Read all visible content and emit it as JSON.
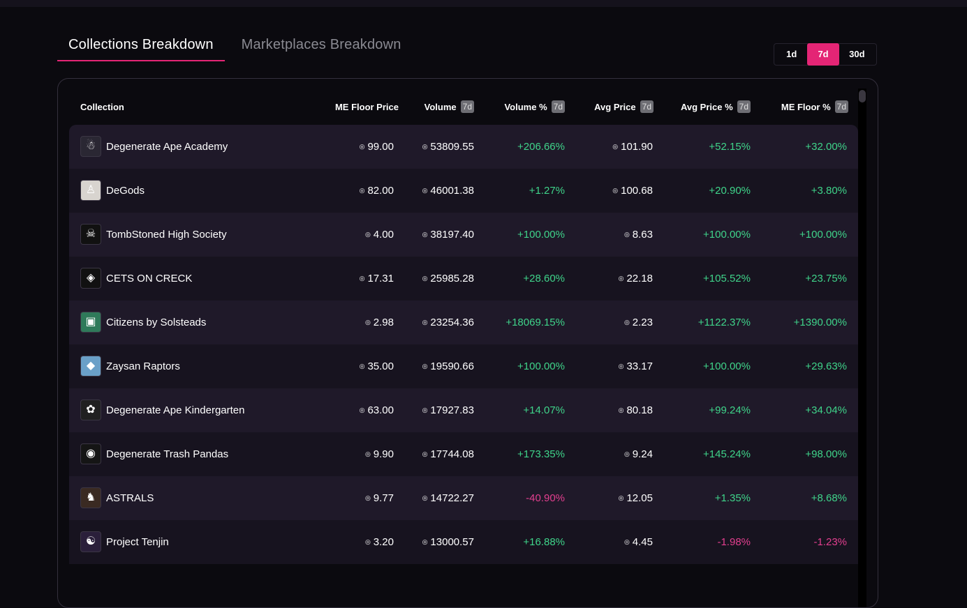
{
  "tabs": [
    {
      "label": "Collections Breakdown",
      "active": true
    },
    {
      "label": "Marketplaces Breakdown",
      "active": false
    }
  ],
  "ranges": [
    {
      "label": "1d",
      "active": false
    },
    {
      "label": "7d",
      "active": true
    },
    {
      "label": "30d",
      "active": false
    }
  ],
  "columns": {
    "collection": "Collection",
    "floor": "ME Floor Price",
    "volume": "Volume",
    "volume_pct": "Volume %",
    "avg": "Avg Price",
    "avg_pct": "Avg Price %",
    "floor_pct": "ME Floor %",
    "badge": "7d"
  },
  "sol_glyph": "◎",
  "colors": {
    "accent": "#e42575",
    "positive": "#3fd48a",
    "negative": "#e33f8f"
  },
  "rows": [
    {
      "name": "Degenerate Ape Academy",
      "floor": "99.00",
      "volume": "53809.55",
      "volume_pct": "+206.66%",
      "avg": "101.90",
      "avg_pct": "+52.15%",
      "floor_pct": "+32.00%"
    },
    {
      "name": "DeGods",
      "floor": "82.00",
      "volume": "46001.38",
      "volume_pct": "+1.27%",
      "avg": "100.68",
      "avg_pct": "+20.90%",
      "floor_pct": "+3.80%"
    },
    {
      "name": "TombStoned High Society",
      "floor": "4.00",
      "volume": "38197.40",
      "volume_pct": "+100.00%",
      "avg": "8.63",
      "avg_pct": "+100.00%",
      "floor_pct": "+100.00%"
    },
    {
      "name": "CETS ON CRECK",
      "floor": "17.31",
      "volume": "25985.28",
      "volume_pct": "+28.60%",
      "avg": "22.18",
      "avg_pct": "+105.52%",
      "floor_pct": "+23.75%"
    },
    {
      "name": "Citizens by Solsteads",
      "floor": "2.98",
      "volume": "23254.36",
      "volume_pct": "+18069.15%",
      "avg": "2.23",
      "avg_pct": "+1122.37%",
      "floor_pct": "+1390.00%"
    },
    {
      "name": "Zaysan Raptors",
      "floor": "35.00",
      "volume": "19590.66",
      "volume_pct": "+100.00%",
      "avg": "33.17",
      "avg_pct": "+100.00%",
      "floor_pct": "+29.63%"
    },
    {
      "name": "Degenerate Ape Kindergarten",
      "floor": "63.00",
      "volume": "17927.83",
      "volume_pct": "+14.07%",
      "avg": "80.18",
      "avg_pct": "+99.24%",
      "floor_pct": "+34.04%"
    },
    {
      "name": "Degenerate Trash Pandas",
      "floor": "9.90",
      "volume": "17744.08",
      "volume_pct": "+173.35%",
      "avg": "9.24",
      "avg_pct": "+145.24%",
      "floor_pct": "+98.00%"
    },
    {
      "name": "ASTRALS",
      "floor": "9.77",
      "volume": "14722.27",
      "volume_pct": "-40.90%",
      "avg": "12.05",
      "avg_pct": "+1.35%",
      "floor_pct": "+8.68%"
    },
    {
      "name": "Project Tenjin",
      "floor": "3.20",
      "volume": "13000.57",
      "volume_pct": "+16.88%",
      "avg": "4.45",
      "avg_pct": "-1.98%",
      "floor_pct": "-1.23%"
    }
  ]
}
